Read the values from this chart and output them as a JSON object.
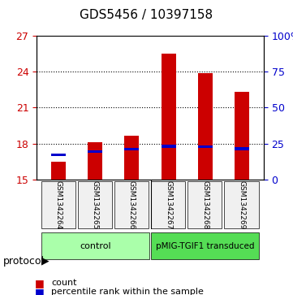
{
  "title": "GDS5456 / 10397158",
  "samples": [
    "GSM1342264",
    "GSM1342265",
    "GSM1342266",
    "GSM1342267",
    "GSM1342268",
    "GSM1342269"
  ],
  "count_values": [
    16.5,
    18.15,
    18.65,
    25.5,
    23.85,
    22.3
  ],
  "percentile_values": [
    17.1,
    17.35,
    17.55,
    17.8,
    17.75,
    17.6
  ],
  "bar_bottom": 15,
  "ylim_left": [
    15,
    27
  ],
  "ylim_right": [
    0,
    100
  ],
  "yticks_left": [
    15,
    18,
    21,
    24,
    27
  ],
  "ytick_labels_left": [
    "15",
    "18",
    "21",
    "24",
    "27"
  ],
  "ytick_labels_right": [
    "0",
    "25",
    "50",
    "75",
    "100%"
  ],
  "yticks_right": [
    0,
    25,
    50,
    75,
    100
  ],
  "left_color": "#cc0000",
  "right_color": "#0000cc",
  "bar_color": "#cc0000",
  "percentile_color": "#0000cc",
  "grid_color": "#000000",
  "groups": [
    {
      "label": "control",
      "samples": [
        0,
        1,
        2
      ],
      "color": "#aaffaa"
    },
    {
      "label": "pMIG-TGIF1 transduced",
      "samples": [
        3,
        4,
        5
      ],
      "color": "#55dd55"
    }
  ],
  "protocol_label": "protocol",
  "legend_count": "count",
  "legend_percentile": "percentile rank within the sample",
  "bar_width": 0.4,
  "background_color": "#f0f0f0"
}
